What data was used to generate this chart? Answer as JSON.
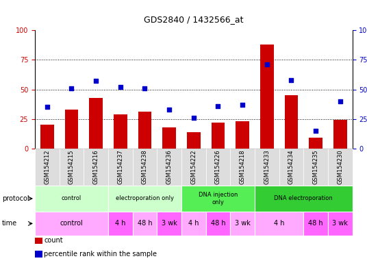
{
  "title": "GDS2840 / 1432566_at",
  "samples": [
    "GSM154212",
    "GSM154215",
    "GSM154216",
    "GSM154237",
    "GSM154238",
    "GSM154236",
    "GSM154222",
    "GSM154226",
    "GSM154218",
    "GSM154233",
    "GSM154234",
    "GSM154235",
    "GSM154230"
  ],
  "bar_values": [
    20,
    33,
    43,
    29,
    31,
    18,
    14,
    22,
    23,
    88,
    45,
    9,
    24
  ],
  "scatter_values": [
    35,
    51,
    57,
    52,
    51,
    33,
    26,
    36,
    37,
    71,
    58,
    15,
    40
  ],
  "bar_color": "#cc0000",
  "scatter_color": "#0000cc",
  "ylim": [
    0,
    100
  ],
  "yticks": [
    0,
    25,
    50,
    75,
    100
  ],
  "grid_lines": [
    25,
    50,
    75
  ],
  "protocol_groups": [
    {
      "label": "control",
      "start": 0,
      "end": 3,
      "color": "#ccffcc"
    },
    {
      "label": "electroporation only",
      "start": 3,
      "end": 6,
      "color": "#ccffcc"
    },
    {
      "label": "DNA injection\nonly",
      "start": 6,
      "end": 9,
      "color": "#44ee44"
    },
    {
      "label": "DNA electroporation",
      "start": 9,
      "end": 13,
      "color": "#44ee44"
    }
  ],
  "proto_border_colors": [
    "#aaddaa",
    "#aaddaa",
    "#22cc22",
    "#22cc22"
  ],
  "time_groups": [
    {
      "label": "control",
      "start": 0,
      "end": 3
    },
    {
      "label": "4 h",
      "start": 3,
      "end": 4
    },
    {
      "label": "48 h",
      "start": 4,
      "end": 5
    },
    {
      "label": "3 wk",
      "start": 5,
      "end": 6
    },
    {
      "label": "4 h",
      "start": 6,
      "end": 7
    },
    {
      "label": "48 h",
      "start": 7,
      "end": 8
    },
    {
      "label": "3 wk",
      "start": 8,
      "end": 9
    },
    {
      "label": "4 h",
      "start": 9,
      "end": 11
    },
    {
      "label": "48 h",
      "start": 11,
      "end": 12
    },
    {
      "label": "3 wk",
      "start": 12,
      "end": 13
    }
  ],
  "time_colors": [
    "#ffaaff",
    "#ff66ff",
    "#ffaaff",
    "#ff66ff",
    "#ffaaff",
    "#ff66ff",
    "#ffaaff",
    "#ffaaff",
    "#ff66ff",
    "#ff66ff"
  ],
  "legend_items": [
    {
      "label": "count",
      "color": "#cc0000"
    },
    {
      "label": "percentile rank within the sample",
      "color": "#0000cc"
    }
  ],
  "sample_bg_color": "#dddddd",
  "left_label_color": "#000000",
  "title_fontsize": 9,
  "axis_fontsize": 7,
  "tick_fontsize": 6,
  "row_label_fontsize": 7,
  "proto_fontsize": 6,
  "time_fontsize": 7,
  "legend_fontsize": 7
}
